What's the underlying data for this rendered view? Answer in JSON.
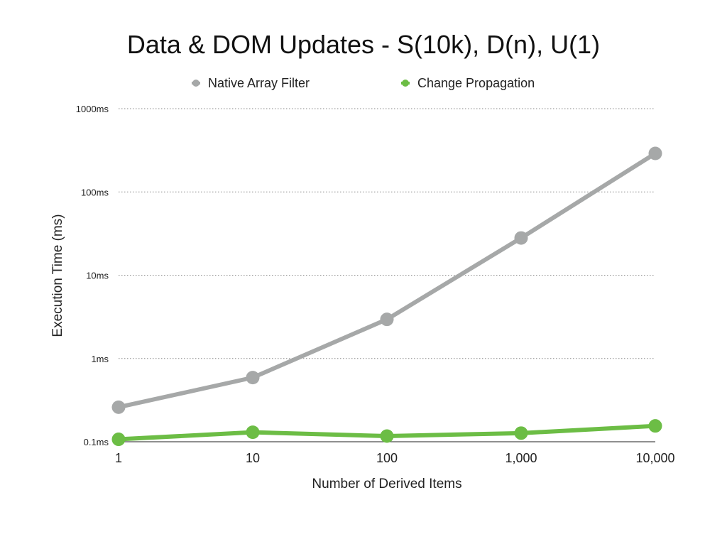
{
  "chart_data": {
    "type": "line",
    "title": "Data & DOM Updates - S(10k), D(n), U(1)",
    "xlabel": "Number of Derived Items",
    "ylabel": "Execution Time (ms)",
    "y_scale": "log",
    "x_scale": "log",
    "ylim": [
      0.1,
      1000
    ],
    "grid": true,
    "legend": "top-center",
    "x": [
      1,
      10,
      100,
      1000,
      10000
    ],
    "x_tick_labels": [
      "1",
      "10",
      "100",
      "1,000",
      "10,000"
    ],
    "y_ticks": [
      0.1,
      1,
      10,
      100,
      1000
    ],
    "y_tick_labels": [
      "0.1ms",
      "1ms",
      "10ms",
      "100ms",
      "1000ms"
    ],
    "series": [
      {
        "name": "Native Array Filter",
        "color": "#a6a8a8",
        "values": [
          0.26,
          0.59,
          2.95,
          28,
          290
        ]
      },
      {
        "name": "Change Propagation",
        "color": "#6cbd45",
        "values": [
          0.107,
          0.13,
          0.117,
          0.127,
          0.155
        ]
      }
    ]
  }
}
